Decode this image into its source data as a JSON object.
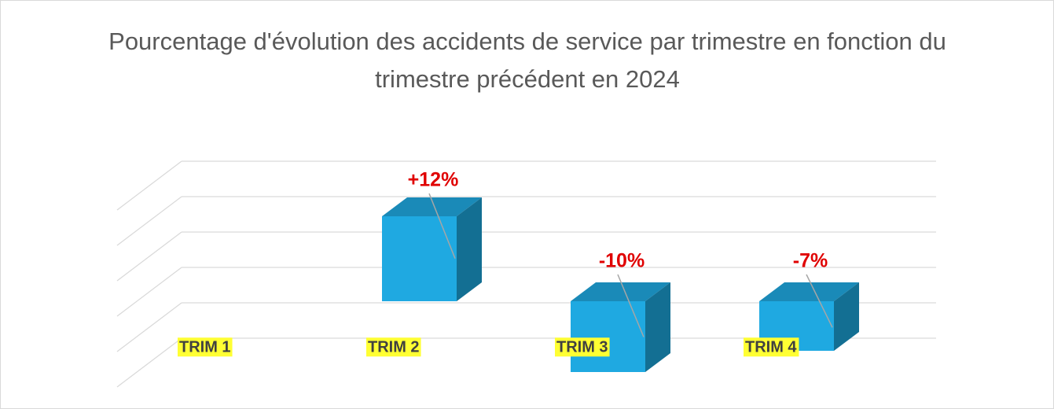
{
  "chart_data": {
    "type": "bar3d",
    "title": "Pourcentage d'évolution des accidents de service par trimestre en fonction du trimestre précédent en 2024",
    "categories": [
      "TRIM 1",
      "TRIM 2",
      "TRIM 3",
      "TRIM 4"
    ],
    "values": [
      null,
      12,
      -10,
      -7
    ],
    "value_labels": [
      null,
      "+12%",
      "-10%",
      "-7%"
    ],
    "color": "#1fa9e1",
    "ylim": [
      -10,
      20
    ],
    "yticks": [
      -5,
      0,
      5,
      10,
      15,
      20
    ],
    "grid": true
  }
}
